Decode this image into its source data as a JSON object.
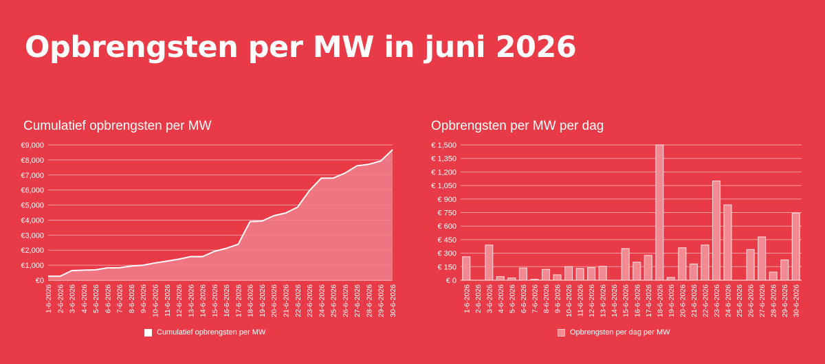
{
  "page": {
    "title": "Opbrengsten per MW in juni 2026"
  },
  "colors": {
    "background": "#e83a47",
    "line": "#ffffff",
    "area_fill": "#f07d86",
    "bar_fill": "#f28a92",
    "gridline": "#f3a0a6"
  },
  "chart_data": [
    {
      "type": "area",
      "title": "Cumulatief opbrengsten per MW",
      "categories": [
        "1-6-2026",
        "2-6-2026",
        "3-6-2026",
        "4-6-2026",
        "5-6-2026",
        "6-6-2026",
        "7-6-2026",
        "8-6-2026",
        "9-6-2026",
        "10-6-2026",
        "11-6-2026",
        "12-6-2026",
        "13-6-2026",
        "14-6-2026",
        "15-6-2026",
        "16-6-2026",
        "17-6-2026",
        "18-6-2026",
        "19-6-2026",
        "20-6-2026",
        "21-6-2026",
        "22-6-2026",
        "23-6-2026",
        "24-6-2026",
        "25-6-2026",
        "26-6-2026",
        "27-6-2026",
        "28-6-2026",
        "29-6-2026",
        "30-6-2026"
      ],
      "series": [
        {
          "name": "Cumulatief opbrengsten per MW",
          "values": [
            260,
            260,
            640,
            670,
            690,
            820,
            830,
            940,
            1000,
            1150,
            1270,
            1400,
            1570,
            1570,
            1920,
            2120,
            2390,
            3900,
            3930,
            4290,
            4470,
            4860,
            5960,
            6790,
            6790,
            7130,
            7610,
            7710,
            7930,
            8680
          ]
        }
      ],
      "ylim": [
        0,
        9000
      ],
      "yticks": [
        "€0",
        "€1,000",
        "€2,000",
        "€3,000",
        "€4,000",
        "€5,000",
        "€6,000",
        "€7,000",
        "€8,000",
        "€9,000"
      ],
      "legend": "bottom",
      "grid": true
    },
    {
      "type": "bar",
      "title": "Opbrengsten per MW per dag",
      "categories": [
        "1-6-2026",
        "2-6-2026",
        "3-6-2026",
        "4-6-2026",
        "5-6-2026",
        "6-6-2026",
        "7-6-2026",
        "8-6-2026",
        "9-6-2026",
        "10-6-2026",
        "11-6-2026",
        "12-6-2026",
        "13-6-2026",
        "14-6-2026",
        "15-6-2026",
        "16-6-2026",
        "17-6-2026",
        "18-6-2026",
        "19-6-2026",
        "20-6-2026",
        "21-6-2026",
        "22-6-2026",
        "23-6-2026",
        "24-6-2026",
        "25-6-2026",
        "26-6-2026",
        "27-6-2026",
        "28-6-2026",
        "29-6-2026",
        "30-6-2026"
      ],
      "series": [
        {
          "name": "Opbrengsten per dag per MW",
          "values": [
            260,
            0,
            390,
            40,
            25,
            135,
            10,
            120,
            60,
            150,
            130,
            140,
            155,
            0,
            350,
            200,
            275,
            1500,
            30,
            360,
            180,
            390,
            1100,
            835,
            0,
            340,
            480,
            90,
            225,
            745
          ]
        }
      ],
      "ylim": [
        0,
        1500
      ],
      "yticks": [
        "€ 0",
        "€ 150",
        "€ 300",
        "€ 450",
        "€ 600",
        "€ 750",
        "€ 900",
        "€ 1,050",
        "€ 1,200",
        "€ 1,350",
        "€ 1,500"
      ],
      "legend": "bottom",
      "grid": true
    }
  ]
}
